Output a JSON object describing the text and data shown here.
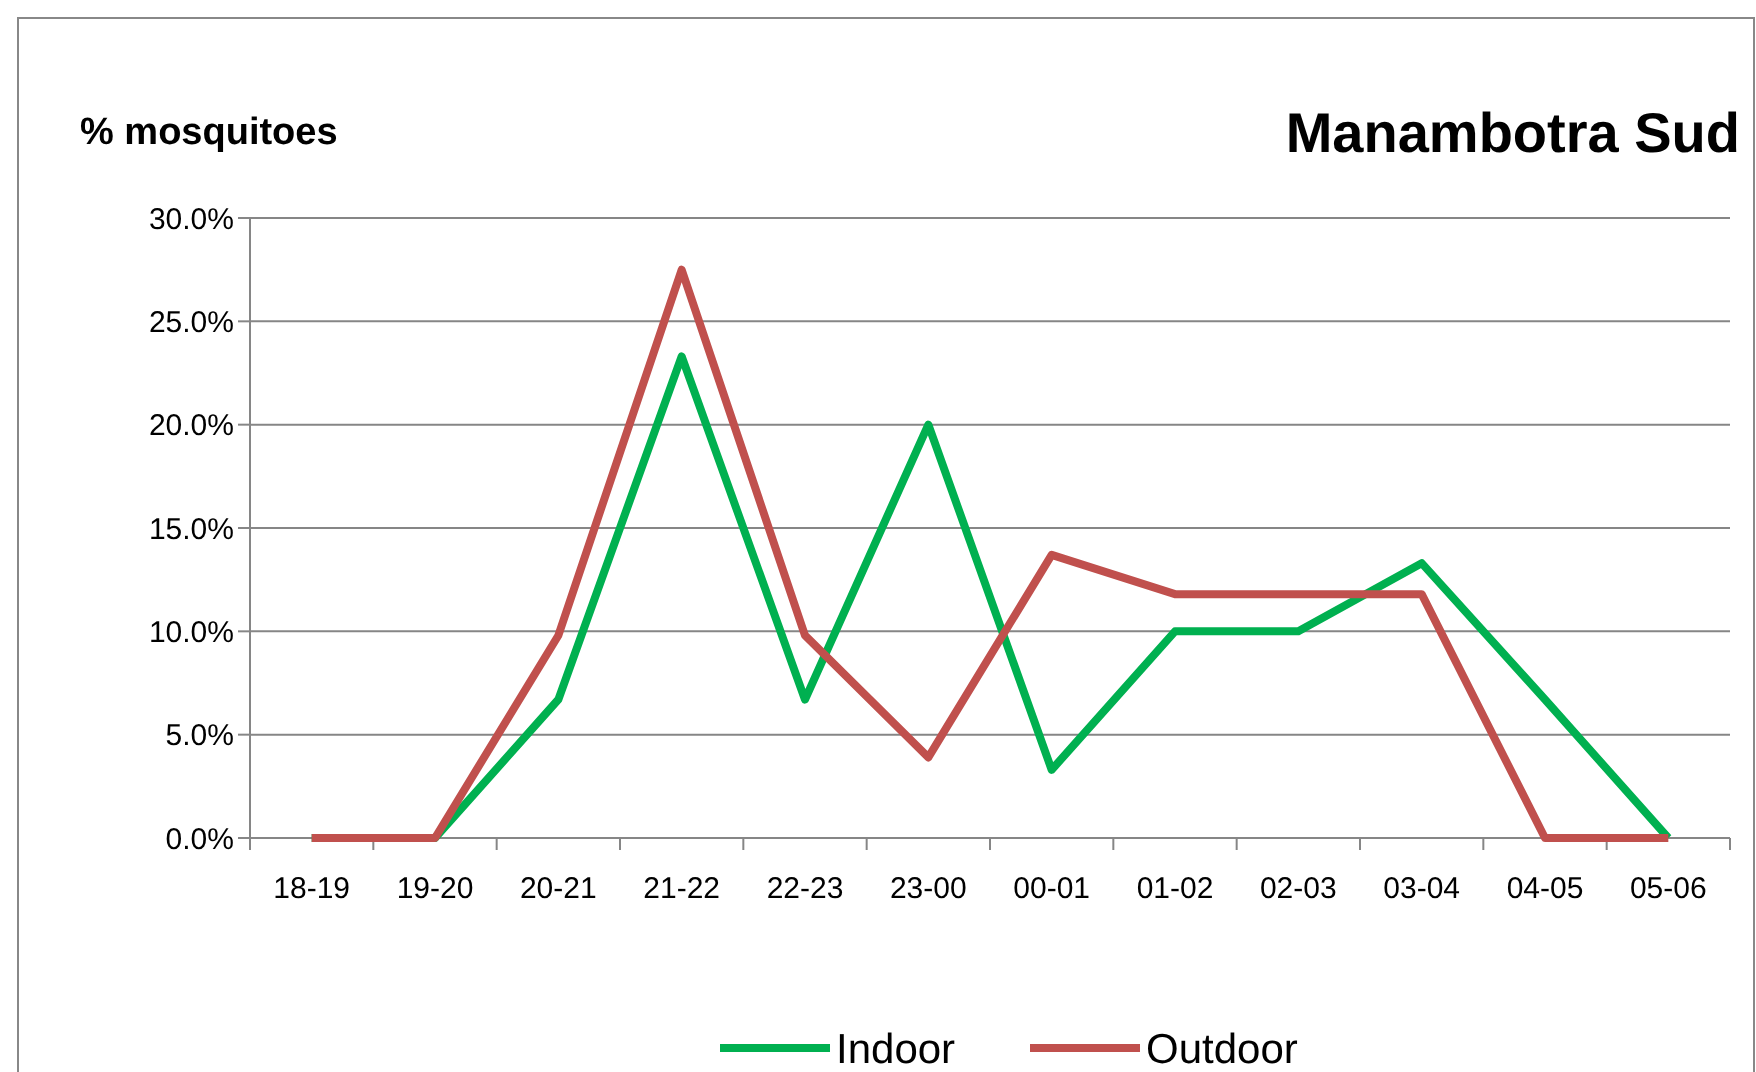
{
  "chart_data": {
    "type": "line",
    "title": "Manambotra Sud",
    "ylabel": "% mosquitoes",
    "categories": [
      "18-19",
      "19-20",
      "20-21",
      "21-22",
      "22-23",
      "23-00",
      "00-01",
      "01-02",
      "02-03",
      "03-04",
      "04-05",
      "05-06"
    ],
    "series": [
      {
        "name": "Indoor",
        "color": "#00b050",
        "values": [
          0,
          0,
          6.7,
          23.3,
          6.7,
          20,
          3.3,
          10,
          10,
          13.3,
          6.7,
          0
        ]
      },
      {
        "name": "Outdoor",
        "color": "#c0504d",
        "values": [
          0,
          0,
          9.8,
          27.5,
          9.8,
          3.9,
          13.7,
          11.8,
          11.8,
          11.8,
          0,
          0
        ]
      }
    ],
    "ylim": [
      0,
      30
    ],
    "yticks": [
      {
        "value": 0,
        "label": "0.0%"
      },
      {
        "value": 5,
        "label": "5.0%"
      },
      {
        "value": 10,
        "label": "10.0%"
      },
      {
        "value": 15,
        "label": "15.0%"
      },
      {
        "value": 20,
        "label": "20.0%"
      },
      {
        "value": 25,
        "label": "25.0%"
      },
      {
        "value": 30,
        "label": "30.0%"
      }
    ],
    "grid": "y",
    "legend": "bottom",
    "marker": "none",
    "line_style": "solid"
  }
}
